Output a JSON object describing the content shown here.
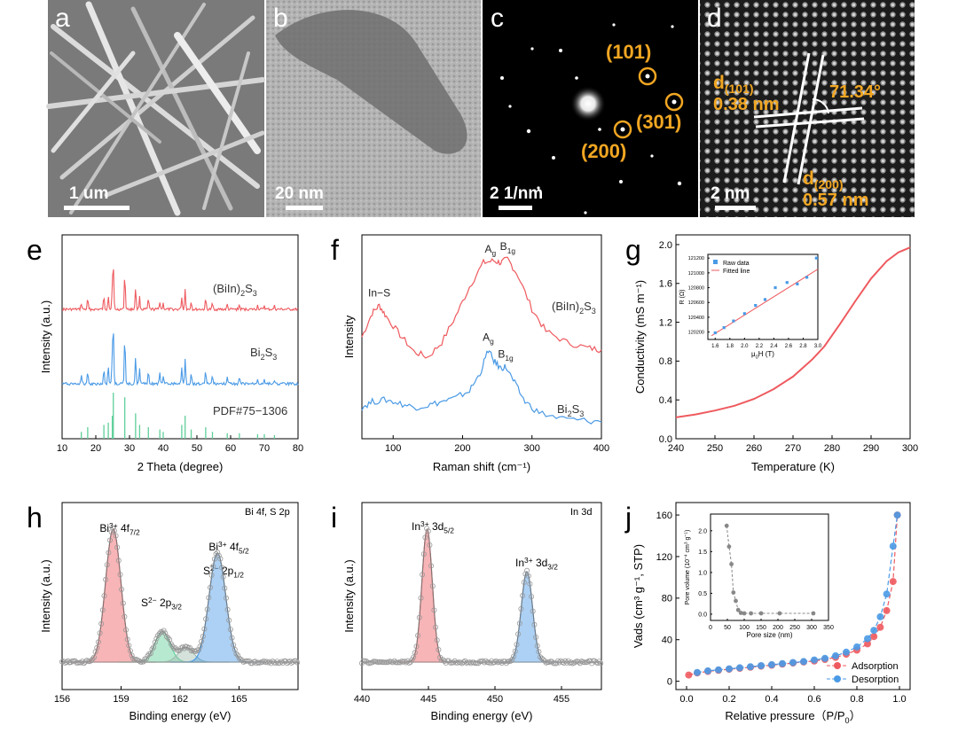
{
  "micrographs": [
    {
      "panel": "a",
      "scale_bar": "1 um"
    },
    {
      "panel": "b",
      "scale_bar": "20 nm"
    },
    {
      "panel": "c",
      "scale_bar": "2 1/nm",
      "spot_labels": [
        "(101)",
        "(301)",
        "(200)"
      ]
    },
    {
      "panel": "d",
      "scale_bar": "2 nm",
      "d101_prefix": "d",
      "d101_sub": "(101)",
      "d101_value": "0.38 nm",
      "d200_prefix": "d",
      "d200_sub": "(200)",
      "d200_value": "0.57 nm",
      "angle": "71.34°"
    }
  ],
  "colors": {
    "red": "#ee5a5f",
    "blue": "#4a9ae6",
    "green": "#5fcf9a",
    "orange": "#f1a622",
    "gray": "#888888"
  },
  "chart_data": [
    {
      "panel": "e",
      "type": "line",
      "xlabel": "2 Theta (degree)",
      "ylabel": "Intensity (a.u.)",
      "xlim": [
        10,
        80
      ],
      "xticks": [
        10,
        20,
        30,
        40,
        50,
        60,
        70,
        80
      ],
      "series_labels": [
        {
          "prefix": "(BiIn)",
          "sub": "2",
          "mid": "S",
          "sub2": "3"
        },
        {
          "prefix": "Bi",
          "sub": "2",
          "mid": "S",
          "sub2": "3"
        },
        {
          "prefix": "PDF#75−1306",
          "sub": "",
          "mid": "",
          "sub2": ""
        }
      ],
      "peaks": [
        15.7,
        17.6,
        22.4,
        23.7,
        24.9,
        25.2,
        28.6,
        31.8,
        33.0,
        35.6,
        39.0,
        40.0,
        45.5,
        46.5,
        48.3,
        52.6,
        54.6,
        59.0,
        62.6,
        68.0,
        70.0,
        73.0
      ],
      "peak_intensity": [
        0.15,
        0.25,
        0.3,
        0.35,
        0.5,
        1.0,
        0.9,
        0.55,
        0.3,
        0.25,
        0.2,
        0.15,
        0.3,
        0.5,
        0.2,
        0.25,
        0.15,
        0.12,
        0.12,
        0.1,
        0.1,
        0.08
      ]
    },
    {
      "panel": "f",
      "type": "line",
      "xlabel": "Raman shift (cm⁻¹)",
      "ylabel": "Intensity",
      "xlim": [
        55,
        400
      ],
      "xticks": [
        100,
        200,
        300,
        400
      ],
      "series": [
        {
          "name": "(BiIn)2S3",
          "label_prefix": "(BiIn)",
          "label_sub": "2",
          "label_mid": "S",
          "label_sub2": "3",
          "x": [
            55,
            70,
            80,
            90,
            110,
            130,
            150,
            170,
            190,
            210,
            230,
            245,
            255,
            265,
            280,
            300,
            320,
            350,
            380,
            400
          ],
          "y": [
            0.55,
            0.68,
            0.72,
            0.66,
            0.56,
            0.47,
            0.44,
            0.52,
            0.66,
            0.82,
            0.95,
            0.96,
            0.95,
            0.97,
            0.88,
            0.7,
            0.58,
            0.52,
            0.49,
            0.48
          ]
        },
        {
          "name": "Bi2S3",
          "label_prefix": "Bi",
          "label_sub": "2",
          "label_mid": "S",
          "label_sub2": "3",
          "x": [
            55,
            70,
            90,
            110,
            130,
            150,
            170,
            190,
            210,
            225,
            237,
            245,
            255,
            262,
            275,
            290,
            310,
            340,
            370,
            400
          ],
          "y": [
            0.17,
            0.2,
            0.21,
            0.19,
            0.17,
            0.18,
            0.2,
            0.22,
            0.26,
            0.35,
            0.48,
            0.42,
            0.38,
            0.39,
            0.3,
            0.2,
            0.14,
            0.11,
            0.1,
            0.09
          ]
        }
      ],
      "annotations": [
        {
          "text": "In−S",
          "x": 80,
          "series": 0
        },
        {
          "text": "A",
          "sub": "g",
          "x": 240,
          "series": 0
        },
        {
          "text": "B",
          "sub": "1g",
          "x": 265,
          "series": 0
        },
        {
          "text": "A",
          "sub": "g",
          "x": 237,
          "series": 1
        },
        {
          "text": "B",
          "sub": "1g",
          "x": 262,
          "series": 1
        }
      ]
    },
    {
      "panel": "g",
      "type": "line",
      "xlabel": "Temperature (K)",
      "ylabel": "Conductivity (mS m⁻¹)",
      "xlim": [
        240,
        300
      ],
      "ylim": [
        0,
        2.1
      ],
      "xticks": [
        240,
        250,
        260,
        270,
        280,
        290,
        300
      ],
      "yticks": [
        0.0,
        0.4,
        0.8,
        1.2,
        1.6,
        2.0
      ],
      "x": [
        240,
        245,
        250,
        255,
        260,
        265,
        270,
        275,
        278,
        282,
        286,
        290,
        294,
        297,
        300
      ],
      "y": [
        0.22,
        0.25,
        0.29,
        0.34,
        0.41,
        0.51,
        0.64,
        0.82,
        0.95,
        1.18,
        1.42,
        1.65,
        1.83,
        1.92,
        1.97
      ],
      "inset": {
        "xlabel_prefix": "μ",
        "xlabel_sub": "0",
        "xlabel_suffix": "H (T)",
        "ylabel": "R (Ω)",
        "xlim": [
          1.5,
          3.0
        ],
        "ylim": [
          120100,
          121250
        ],
        "xticks": [
          1.6,
          1.8,
          2.0,
          2.2,
          2.4,
          2.6,
          2.8,
          3.0
        ],
        "yticks": [
          120200,
          120400,
          120600,
          120800,
          121000,
          121200
        ],
        "raw_data": {
          "name": "Raw data",
          "x": [
            1.6,
            1.72,
            1.85,
            2.0,
            2.15,
            2.28,
            2.42,
            2.58,
            2.72,
            2.85,
            2.98
          ],
          "y": [
            120190,
            120260,
            120350,
            120450,
            120560,
            120640,
            120800,
            120870,
            120850,
            120940,
            121200
          ]
        },
        "fit": {
          "name": "Fitted line",
          "x": [
            1.55,
            3.0
          ],
          "y": [
            120150,
            121050
          ]
        }
      }
    },
    {
      "panel": "h",
      "type": "line",
      "title": "Bi 4f, S 2p",
      "xlabel": "Binding energy (eV)",
      "ylabel": "Intensity (a.u.)",
      "xlim": [
        156,
        168
      ],
      "xticks": [
        156,
        159,
        162,
        165
      ],
      "peaks": [
        {
          "label_prefix": "Bi",
          "label_sup": "3+",
          "label_mid": " 4f",
          "label_sub": "7/2",
          "center": 158.6,
          "height": 1.0,
          "width": 0.55,
          "color": "#ee5a5f"
        },
        {
          "label_prefix": "S",
          "label_sup": "2−",
          "label_mid": " 2p",
          "label_sub": "3/2",
          "center": 161.1,
          "height": 0.23,
          "width": 0.55,
          "color": "#5fcf9a"
        },
        {
          "label_prefix": "S",
          "label_sup": "2−",
          "label_mid": " 2p",
          "label_sub": "1/2",
          "center": 162.3,
          "height": 0.11,
          "width": 0.55,
          "color": "#9fbfb0"
        },
        {
          "label_prefix": "Bi",
          "label_sup": "3+",
          "label_mid": " 4f",
          "label_sub": "5/2",
          "center": 163.9,
          "height": 0.82,
          "width": 0.6,
          "color": "#4a9ae6"
        }
      ]
    },
    {
      "panel": "i",
      "type": "line",
      "title": "In 3d",
      "xlabel": "Binding energy (eV)",
      "ylabel": "Intensity (a.u.)",
      "xlim": [
        440,
        458
      ],
      "xticks": [
        440,
        445,
        450,
        455
      ],
      "peaks": [
        {
          "label_prefix": "In",
          "label_sup": "3+",
          "label_mid": " 3d",
          "label_sub": "5/2",
          "center": 444.9,
          "height": 1.0,
          "width": 0.55,
          "color": "#ee5a5f"
        },
        {
          "label_prefix": "In",
          "label_sup": "3+",
          "label_mid": " 3d",
          "label_sub": "3/2",
          "center": 452.4,
          "height": 0.68,
          "width": 0.6,
          "color": "#4a9ae6"
        }
      ]
    },
    {
      "panel": "j",
      "type": "scatter",
      "xlabel_prefix": "Relative pressure（P/P",
      "xlabel_sub": "0",
      "xlabel_suffix": "）",
      "ylabel": "Vads (cm³ g⁻¹, STP)",
      "xlim": [
        -0.05,
        1.05
      ],
      "ylim": [
        -8,
        172
      ],
      "xticks": [
        0.0,
        0.2,
        0.4,
        0.6,
        0.8,
        1.0
      ],
      "yticks": [
        0,
        40,
        80,
        120,
        160
      ],
      "series": [
        {
          "name": "Adsorption",
          "color": "#ee5a5f",
          "x": [
            0.01,
            0.05,
            0.1,
            0.15,
            0.2,
            0.25,
            0.3,
            0.35,
            0.4,
            0.45,
            0.5,
            0.55,
            0.6,
            0.65,
            0.7,
            0.75,
            0.8,
            0.85,
            0.88,
            0.91,
            0.94,
            0.97,
            0.99
          ],
          "y": [
            6,
            8,
            9.5,
            10.5,
            11.5,
            12.5,
            13.5,
            14.5,
            15.5,
            16.5,
            17.5,
            18.5,
            19.5,
            21,
            23,
            26,
            30,
            36,
            43,
            52,
            68,
            96,
            160
          ]
        },
        {
          "name": "Desorption",
          "color": "#4a9ae6",
          "x": [
            0.05,
            0.1,
            0.15,
            0.2,
            0.25,
            0.3,
            0.35,
            0.4,
            0.45,
            0.5,
            0.55,
            0.6,
            0.65,
            0.7,
            0.75,
            0.8,
            0.85,
            0.88,
            0.91,
            0.94,
            0.97,
            0.99
          ],
          "y": [
            8.5,
            10,
            11,
            12,
            13,
            14,
            15,
            16,
            17,
            18,
            19,
            20.5,
            22,
            24.5,
            28,
            33,
            41,
            49,
            62,
            84,
            130,
            160
          ]
        }
      ],
      "inset": {
        "xlabel": "Pore size (nm)",
        "ylabel_prefix": "Pore volume (10",
        "ylabel_sup1": "−4",
        "ylabel_mid": " cm",
        "ylabel_sup2": "3",
        "ylabel_mid2": " g",
        "ylabel_sup3": "−1",
        "ylabel_suffix": ")",
        "xlim": [
          0,
          350
        ],
        "ylim": [
          -0.15,
          2.4
        ],
        "xticks": [
          0,
          50,
          100,
          150,
          200,
          250,
          300,
          350
        ],
        "yticks": [
          0.0,
          0.5,
          1.0,
          1.5,
          2.0
        ],
        "x": [
          48,
          55,
          62,
          68,
          75,
          82,
          90,
          100,
          120,
          150,
          205,
          305
        ],
        "y": [
          2.12,
          1.62,
          1.2,
          0.52,
          0.32,
          0.1,
          0.03,
          0.02,
          0.02,
          0.02,
          0.02,
          0.02
        ]
      }
    }
  ]
}
